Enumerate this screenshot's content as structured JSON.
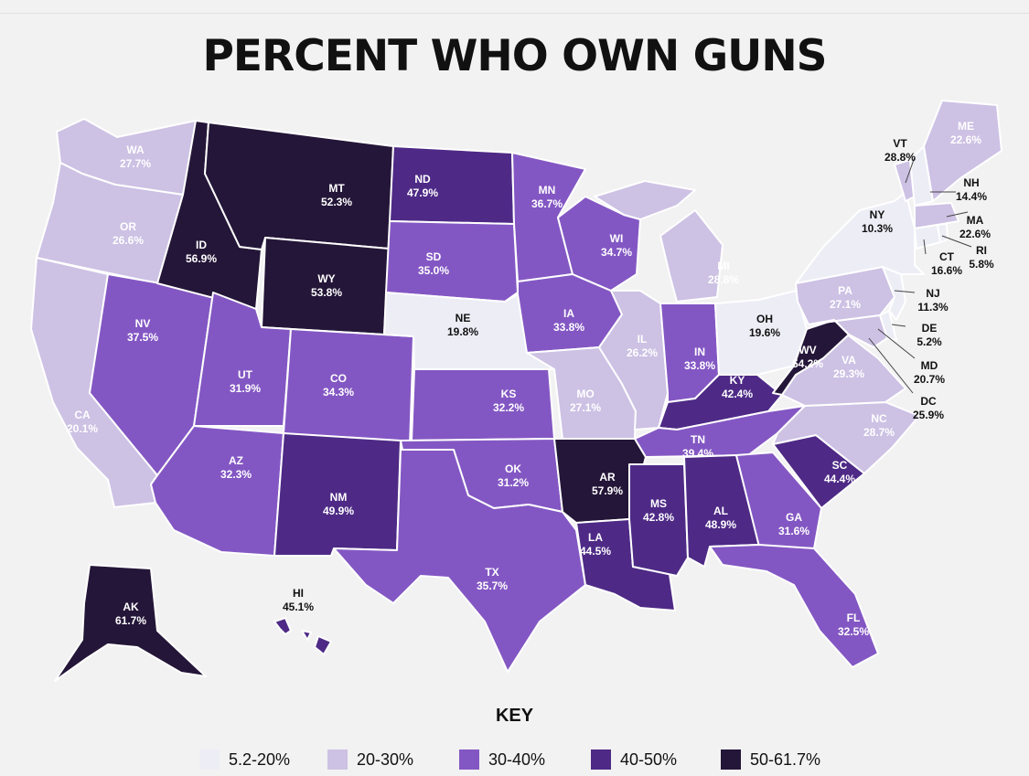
{
  "title": "PERCENT WHO OWN GUNS",
  "key_title": "KEY",
  "bins": [
    {
      "label": "5.2-20%",
      "color": "#ededf6"
    },
    {
      "label": "20-30%",
      "color": "#cdc1e4"
    },
    {
      "label": "30-40%",
      "color": "#8357c3"
    },
    {
      "label": "40-50%",
      "color": "#4e2a86"
    },
    {
      "label": "50-61.7%",
      "color": "#241638"
    }
  ],
  "states": [
    {
      "abbr": "WA",
      "value": "27.7%",
      "bin": 1
    },
    {
      "abbr": "OR",
      "value": "26.6%",
      "bin": 1
    },
    {
      "abbr": "CA",
      "value": "20.1%",
      "bin": 1
    },
    {
      "abbr": "NV",
      "value": "37.5%",
      "bin": 2
    },
    {
      "abbr": "ID",
      "value": "56.9%",
      "bin": 4
    },
    {
      "abbr": "MT",
      "value": "52.3%",
      "bin": 4
    },
    {
      "abbr": "WY",
      "value": "53.8%",
      "bin": 4
    },
    {
      "abbr": "UT",
      "value": "31.9%",
      "bin": 2
    },
    {
      "abbr": "AZ",
      "value": "32.3%",
      "bin": 2
    },
    {
      "abbr": "CO",
      "value": "34.3%",
      "bin": 2
    },
    {
      "abbr": "NM",
      "value": "49.9%",
      "bin": 3
    },
    {
      "abbr": "ND",
      "value": "47.9%",
      "bin": 3
    },
    {
      "abbr": "SD",
      "value": "35.0%",
      "bin": 2
    },
    {
      "abbr": "NE",
      "value": "19.8%",
      "bin": 0
    },
    {
      "abbr": "KS",
      "value": "32.2%",
      "bin": 2
    },
    {
      "abbr": "OK",
      "value": "31.2%",
      "bin": 2
    },
    {
      "abbr": "TX",
      "value": "35.7%",
      "bin": 2
    },
    {
      "abbr": "MN",
      "value": "36.7%",
      "bin": 2
    },
    {
      "abbr": "IA",
      "value": "33.8%",
      "bin": 2
    },
    {
      "abbr": "MO",
      "value": "27.1%",
      "bin": 1
    },
    {
      "abbr": "AR",
      "value": "57.9%",
      "bin": 4
    },
    {
      "abbr": "LA",
      "value": "44.5%",
      "bin": 3
    },
    {
      "abbr": "WI",
      "value": "34.7%",
      "bin": 2
    },
    {
      "abbr": "IL",
      "value": "26.2%",
      "bin": 1
    },
    {
      "abbr": "MI",
      "value": "28.8%",
      "bin": 1
    },
    {
      "abbr": "IN",
      "value": "33.8%",
      "bin": 2
    },
    {
      "abbr": "OH",
      "value": "19.6%",
      "bin": 0
    },
    {
      "abbr": "KY",
      "value": "42.4%",
      "bin": 3
    },
    {
      "abbr": "TN",
      "value": "39.4%",
      "bin": 2
    },
    {
      "abbr": "MS",
      "value": "42.8%",
      "bin": 3
    },
    {
      "abbr": "AL",
      "value": "48.9%",
      "bin": 3
    },
    {
      "abbr": "GA",
      "value": "31.6%",
      "bin": 2
    },
    {
      "abbr": "FL",
      "value": "32.5%",
      "bin": 2
    },
    {
      "abbr": "SC",
      "value": "44.4%",
      "bin": 3
    },
    {
      "abbr": "NC",
      "value": "28.7%",
      "bin": 1
    },
    {
      "abbr": "VA",
      "value": "29.3%",
      "bin": 1
    },
    {
      "abbr": "WV",
      "value": "54.2%",
      "bin": 4
    },
    {
      "abbr": "PA",
      "value": "27.1%",
      "bin": 1
    },
    {
      "abbr": "NY",
      "value": "10.3%",
      "bin": 0
    },
    {
      "abbr": "VT",
      "value": "28.8%",
      "bin": 1
    },
    {
      "abbr": "NH",
      "value": "14.4%",
      "bin": 0
    },
    {
      "abbr": "ME",
      "value": "22.6%",
      "bin": 1
    },
    {
      "abbr": "MA",
      "value": "22.6%",
      "bin": 1
    },
    {
      "abbr": "RI",
      "value": "5.8%",
      "bin": 0
    },
    {
      "abbr": "CT",
      "value": "16.6%",
      "bin": 0
    },
    {
      "abbr": "NJ",
      "value": "11.3%",
      "bin": 0
    },
    {
      "abbr": "DE",
      "value": "5.2%",
      "bin": 0
    },
    {
      "abbr": "MD",
      "value": "20.7%",
      "bin": 1
    },
    {
      "abbr": "DC",
      "value": "25.9%",
      "bin": 1
    },
    {
      "abbr": "AK",
      "value": "61.7%",
      "bin": 4
    },
    {
      "abbr": "HI",
      "value": "45.1%",
      "bin": 3
    }
  ]
}
